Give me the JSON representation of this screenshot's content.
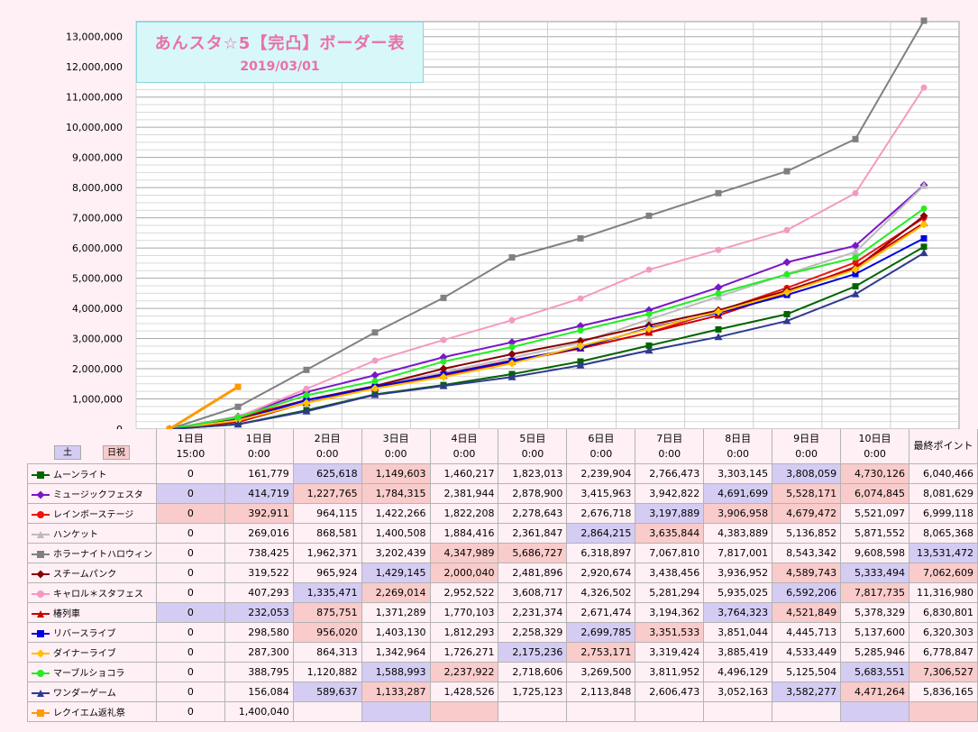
{
  "title": "あんスタ☆5【完凸】ボーダー表",
  "date": "2019/03/01",
  "holiday_labels": {
    "sat": "土",
    "hol": "日祝"
  },
  "last_col_label": "最終ポイント",
  "columns": [
    {
      "day": "1日目",
      "time": "15:00"
    },
    {
      "day": "1日目",
      "time": "0:00"
    },
    {
      "day": "2日目",
      "time": "0:00"
    },
    {
      "day": "3日目",
      "time": "0:00"
    },
    {
      "day": "4日目",
      "time": "0:00"
    },
    {
      "day": "5日目",
      "time": "0:00"
    },
    {
      "day": "6日目",
      "time": "0:00"
    },
    {
      "day": "7日目",
      "time": "0:00"
    },
    {
      "day": "8日目",
      "time": "0:00"
    },
    {
      "day": "9日目",
      "time": "0:00"
    },
    {
      "day": "10日目",
      "time": "0:00"
    }
  ],
  "chart_data": {
    "type": "line",
    "ylim": [
      0,
      13500000
    ],
    "yticks": [
      "0",
      "1,000,000",
      "2,000,000",
      "3,000,000",
      "4,000,000",
      "5,000,000",
      "6,000,000",
      "7,000,000",
      "8,000,000",
      "9,000,000",
      "10,000,000",
      "11,000,000",
      "12,000,000",
      "13,000,000"
    ],
    "series": [
      {
        "name": "ムーンライト",
        "color": "#006400",
        "marker": "square",
        "values": [
          "0",
          "161,779",
          "625,618",
          "1,149,603",
          "1,460,217",
          "1,823,013",
          "2,239,904",
          "2,766,473",
          "3,303,145",
          "3,808,059",
          "4,730,126",
          "6,040,466"
        ],
        "bg": [
          "n",
          "n",
          "b",
          "r",
          "n",
          "n",
          "n",
          "n",
          "n",
          "b",
          "r",
          "n"
        ]
      },
      {
        "name": "ミュージックフェスタ",
        "color": "#7b16c8",
        "marker": "diamond",
        "values": [
          "0",
          "414,719",
          "1,227,765",
          "1,784,315",
          "2,381,944",
          "2,878,900",
          "3,415,963",
          "3,942,822",
          "4,691,699",
          "5,528,171",
          "6,074,845",
          "8,081,629"
        ],
        "bg": [
          "b",
          "b",
          "r",
          "r",
          "n",
          "n",
          "n",
          "n",
          "b",
          "r",
          "r",
          "n"
        ]
      },
      {
        "name": "レインボーステージ",
        "color": "#ee1111",
        "marker": "circle",
        "values": [
          "0",
          "392,911",
          "964,115",
          "1,422,266",
          "1,822,208",
          "2,278,643",
          "2,676,718",
          "3,197,889",
          "3,906,958",
          "4,679,472",
          "5,521,097",
          "6,999,118"
        ],
        "bg": [
          "r",
          "r",
          "n",
          "n",
          "n",
          "n",
          "n",
          "b",
          "r",
          "r",
          "n",
          "n"
        ]
      },
      {
        "name": "ハンケット",
        "color": "#bbbbbb",
        "marker": "triangle",
        "values": [
          "0",
          "269,016",
          "868,581",
          "1,400,508",
          "1,884,416",
          "2,361,847",
          "2,864,215",
          "3,635,844",
          "4,383,889",
          "5,136,852",
          "5,871,552",
          "8,065,368"
        ],
        "bg": [
          "n",
          "n",
          "n",
          "n",
          "n",
          "n",
          "b",
          "r",
          "n",
          "n",
          "n",
          "n"
        ]
      },
      {
        "name": "ホラーナイトハロウィン",
        "color": "#808080",
        "marker": "square",
        "values": [
          "0",
          "738,425",
          "1,962,371",
          "3,202,439",
          "4,347,989",
          "5,686,727",
          "6,318,897",
          "7,067,810",
          "7,817,001",
          "8,543,342",
          "9,608,598",
          "13,531,472"
        ],
        "bg": [
          "n",
          "n",
          "n",
          "n",
          "r",
          "r",
          "n",
          "n",
          "n",
          "n",
          "n",
          "b"
        ]
      },
      {
        "name": "スチームパンク",
        "color": "#8b0000",
        "marker": "diamond",
        "values": [
          "0",
          "319,522",
          "965,924",
          "1,429,145",
          "2,000,040",
          "2,481,896",
          "2,920,674",
          "3,438,456",
          "3,936,952",
          "4,589,743",
          "5,333,494",
          "7,062,609"
        ],
        "bg": [
          "n",
          "n",
          "n",
          "b",
          "r",
          "n",
          "n",
          "n",
          "n",
          "r",
          "b",
          "r"
        ]
      },
      {
        "name": "キャロル＊スタフェス",
        "color": "#f49ac1",
        "marker": "circle",
        "values": [
          "0",
          "407,293",
          "1,335,471",
          "2,269,014",
          "2,952,522",
          "3,608,717",
          "4,326,502",
          "5,281,294",
          "5,935,025",
          "6,592,206",
          "7,817,735",
          "11,316,980"
        ],
        "bg": [
          "n",
          "n",
          "b",
          "r",
          "n",
          "n",
          "n",
          "n",
          "n",
          "b",
          "r",
          "n"
        ]
      },
      {
        "name": "椿列車",
        "color": "#cc0000",
        "marker": "triangle",
        "values": [
          "0",
          "232,053",
          "875,751",
          "1,371,289",
          "1,770,103",
          "2,231,374",
          "2,671,474",
          "3,194,362",
          "3,764,323",
          "4,521,849",
          "5,378,329",
          "6,830,801"
        ],
        "bg": [
          "b",
          "b",
          "r",
          "n",
          "n",
          "n",
          "n",
          "n",
          "b",
          "r",
          "n",
          "n"
        ]
      },
      {
        "name": "リバースライブ",
        "color": "#0000e0",
        "marker": "square",
        "values": [
          "0",
          "298,580",
          "956,020",
          "1,403,130",
          "1,812,293",
          "2,258,329",
          "2,699,785",
          "3,351,533",
          "3,851,044",
          "4,445,713",
          "5,137,600",
          "6,320,303"
        ],
        "bg": [
          "n",
          "n",
          "r",
          "n",
          "n",
          "n",
          "b",
          "r",
          "n",
          "n",
          "n",
          "n"
        ]
      },
      {
        "name": "ダイナーライブ",
        "color": "#ffc000",
        "marker": "diamond",
        "values": [
          "0",
          "287,300",
          "864,313",
          "1,342,964",
          "1,726,271",
          "2,175,236",
          "2,753,171",
          "3,319,424",
          "3,885,419",
          "4,533,449",
          "5,285,946",
          "6,778,847"
        ],
        "bg": [
          "n",
          "n",
          "n",
          "n",
          "n",
          "b",
          "r",
          "n",
          "n",
          "n",
          "n",
          "n"
        ]
      },
      {
        "name": "マーブルショコラ",
        "color": "#22ee22",
        "marker": "circle",
        "values": [
          "0",
          "388,795",
          "1,120,882",
          "1,588,993",
          "2,237,922",
          "2,718,606",
          "3,269,500",
          "3,811,952",
          "4,496,129",
          "5,125,504",
          "5,683,551",
          "7,306,527"
        ],
        "bg": [
          "n",
          "n",
          "n",
          "b",
          "r",
          "n",
          "n",
          "n",
          "n",
          "n",
          "b",
          "r"
        ]
      },
      {
        "name": "ワンダーゲーム",
        "color": "#2f3a8f",
        "marker": "triangle",
        "values": [
          "0",
          "156,084",
          "589,637",
          "1,133,287",
          "1,428,526",
          "1,725,123",
          "2,113,848",
          "2,606,473",
          "3,052,163",
          "3,582,277",
          "4,471,264",
          "5,836,165"
        ],
        "bg": [
          "n",
          "n",
          "b",
          "r",
          "n",
          "n",
          "n",
          "n",
          "n",
          "b",
          "r",
          "n"
        ]
      },
      {
        "name": "レクイエム返礼祭",
        "color": "#ff9900",
        "marker": "square",
        "values": [
          "0",
          "1,400,040",
          "",
          "",
          "",
          "",
          "",
          "",
          "",
          "",
          "",
          ""
        ],
        "bg": [
          "n",
          "n",
          "n",
          "b",
          "r",
          "n",
          "n",
          "n",
          "n",
          "n",
          "b",
          "r"
        ]
      }
    ]
  }
}
